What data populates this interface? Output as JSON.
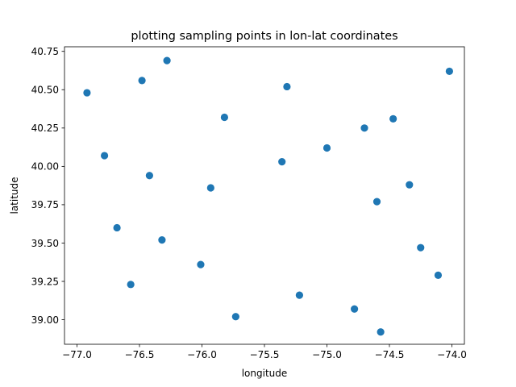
{
  "chart_data": {
    "type": "scatter",
    "title": "plotting sampling points in lon-lat coordinates",
    "xlabel": "longitude",
    "ylabel": "latitude",
    "xlim": [
      -77.1,
      -73.9
    ],
    "ylim": [
      38.84,
      40.78
    ],
    "xticks": [
      -77.0,
      -76.5,
      -76.0,
      -75.5,
      -75.0,
      -74.5,
      -74.0
    ],
    "xtick_labels": [
      "−77.0",
      "−76.5",
      "−76.0",
      "−75.5",
      "−75.0",
      "−74.5",
      "−74.0"
    ],
    "yticks": [
      39.0,
      39.25,
      39.5,
      39.75,
      40.0,
      40.25,
      40.5,
      40.75
    ],
    "ytick_labels": [
      "39.00",
      "39.25",
      "39.50",
      "39.75",
      "40.00",
      "40.25",
      "40.50",
      "40.75"
    ],
    "grid": false,
    "color": "#1f77b4",
    "points": [
      {
        "x": -76.92,
        "y": 40.48
      },
      {
        "x": -76.48,
        "y": 40.56
      },
      {
        "x": -76.28,
        "y": 40.69
      },
      {
        "x": -75.32,
        "y": 40.52
      },
      {
        "x": -74.02,
        "y": 40.62
      },
      {
        "x": -75.82,
        "y": 40.32
      },
      {
        "x": -74.47,
        "y": 40.31
      },
      {
        "x": -74.7,
        "y": 40.25
      },
      {
        "x": -75.0,
        "y": 40.12
      },
      {
        "x": -76.78,
        "y": 40.07
      },
      {
        "x": -75.36,
        "y": 40.03
      },
      {
        "x": -76.42,
        "y": 39.94
      },
      {
        "x": -75.93,
        "y": 39.86
      },
      {
        "x": -74.34,
        "y": 39.88
      },
      {
        "x": -74.6,
        "y": 39.77
      },
      {
        "x": -76.68,
        "y": 39.6
      },
      {
        "x": -76.32,
        "y": 39.52
      },
      {
        "x": -74.25,
        "y": 39.47
      },
      {
        "x": -76.01,
        "y": 39.36
      },
      {
        "x": -74.11,
        "y": 39.29
      },
      {
        "x": -76.57,
        "y": 39.23
      },
      {
        "x": -75.22,
        "y": 39.16
      },
      {
        "x": -74.78,
        "y": 39.07
      },
      {
        "x": -75.73,
        "y": 39.02
      },
      {
        "x": -74.57,
        "y": 38.92
      }
    ]
  }
}
